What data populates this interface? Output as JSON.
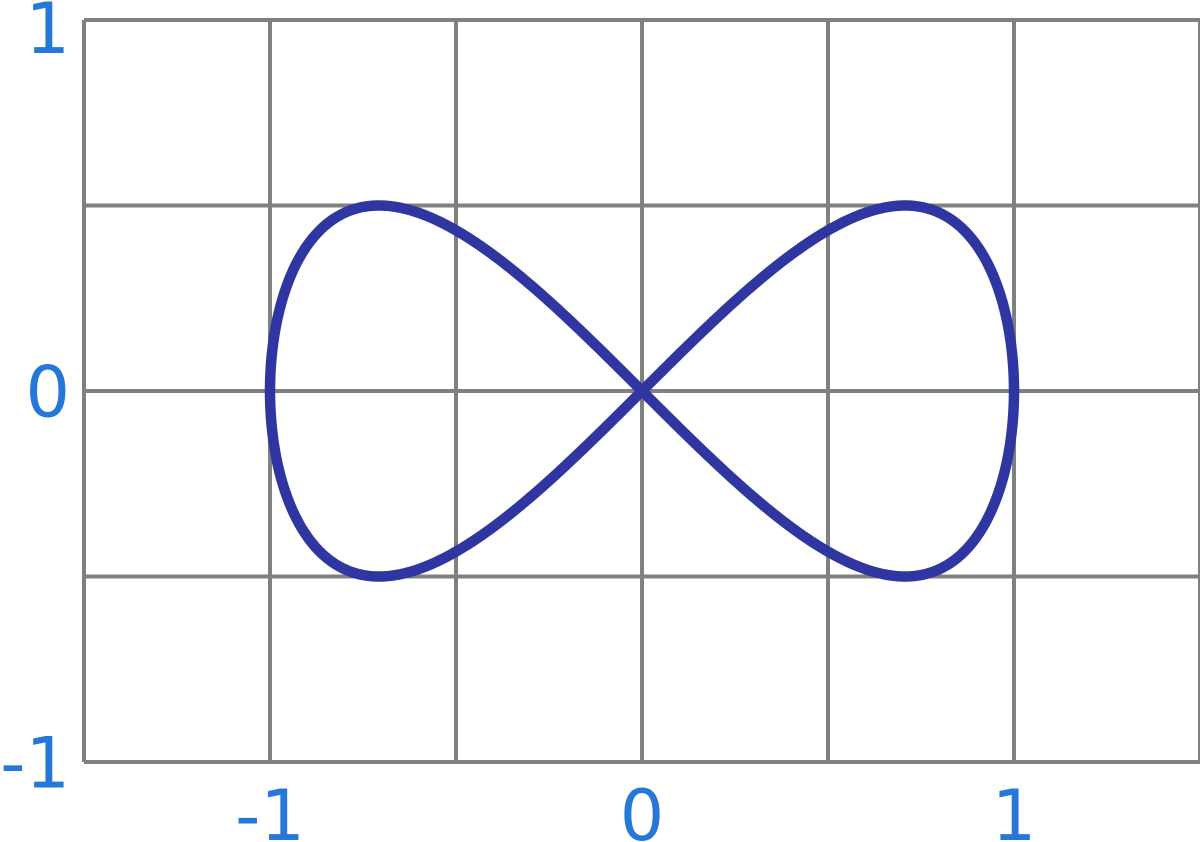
{
  "chart_data": {
    "type": "line",
    "curve": {
      "name": "lemniscate-of-gerono",
      "description": "1:2 Lissajous figure-eight",
      "parametric": {
        "x": {
          "fn": "cos",
          "amplitude": 1,
          "frequency": 1,
          "phase_deg": 0
        },
        "y": {
          "fn": "sin",
          "amplitude": 0.5,
          "frequency": 2,
          "phase_deg": 0
        }
      },
      "t_range_deg": [
        0,
        360
      ],
      "samples": 720,
      "color": "#2f36a2",
      "stroke_width": 10.5,
      "sample_points_step10deg": [
        [
          1.0,
          0.0
        ],
        [
          0.9848,
          0.171
        ],
        [
          0.9397,
          0.3214
        ],
        [
          0.866,
          0.433
        ],
        [
          0.766,
          0.4924
        ],
        [
          0.6428,
          0.4924
        ],
        [
          0.5,
          0.433
        ],
        [
          0.342,
          0.3214
        ],
        [
          0.1736,
          0.171
        ],
        [
          0.0,
          0.0
        ],
        [
          -0.1736,
          -0.171
        ],
        [
          -0.342,
          -0.3214
        ],
        [
          -0.5,
          -0.433
        ],
        [
          -0.6428,
          -0.4924
        ],
        [
          -0.766,
          -0.4924
        ],
        [
          -0.866,
          -0.433
        ],
        [
          -0.9397,
          -0.3214
        ],
        [
          -0.9848,
          -0.171
        ],
        [
          -1.0,
          0.0
        ],
        [
          -0.9848,
          0.171
        ],
        [
          -0.9397,
          0.3214
        ],
        [
          -0.866,
          0.433
        ],
        [
          -0.766,
          0.4924
        ],
        [
          -0.6428,
          0.4924
        ],
        [
          -0.5,
          0.433
        ],
        [
          -0.342,
          0.3214
        ],
        [
          -0.1736,
          0.171
        ],
        [
          0.0,
          0.0
        ],
        [
          0.1736,
          -0.171
        ],
        [
          0.342,
          -0.3214
        ],
        [
          0.5,
          -0.433
        ],
        [
          0.6428,
          -0.4924
        ],
        [
          0.766,
          -0.4924
        ],
        [
          0.866,
          -0.433
        ],
        [
          0.9397,
          -0.3214
        ],
        [
          0.9848,
          -0.171
        ],
        [
          1.0,
          0.0
        ]
      ]
    },
    "axes": {
      "xlim": [
        -1.5,
        1.5
      ],
      "ylim": [
        -1.0,
        1.0
      ],
      "grid": true,
      "grid_step": 0.5,
      "grid_color": "#808080",
      "grid_stroke_width": 4,
      "tick_label_color": "#2577d9",
      "x_ticks": [
        {
          "value": -1,
          "label": "-1"
        },
        {
          "value": 0,
          "label": "0"
        },
        {
          "value": 1,
          "label": "1"
        }
      ],
      "y_ticks": [
        {
          "value": 1,
          "label": "1"
        },
        {
          "value": 0,
          "label": "0"
        },
        {
          "value": -1,
          "label": "-1"
        }
      ]
    },
    "background": "#ffffff"
  }
}
